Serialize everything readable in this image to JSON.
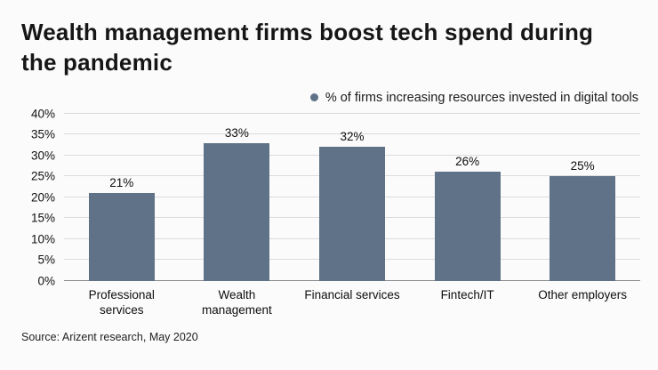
{
  "title": "Wealth management firms boost tech spend during the pandemic",
  "legend": {
    "label": "% of firms increasing resources invested in digital tools"
  },
  "source": "Source: Arizent research, May 2020",
  "colors": {
    "bar": "#5f7287",
    "grid": "#dcdcdc",
    "baseline": "#85888c",
    "text": "#111111",
    "background": "#fbfbfb"
  },
  "chart_data": {
    "type": "bar",
    "title": "Wealth management firms boost tech spend during the pandemic",
    "legend_entries": [
      "% of firms increasing resources invested in digital tools"
    ],
    "legend_position": "top-right",
    "categories": [
      "Professional services",
      "Wealth management",
      "Financial services",
      "Fintech/IT",
      "Other employers"
    ],
    "values": [
      21,
      33,
      32,
      26,
      25
    ],
    "value_labels": [
      "21%",
      "33%",
      "32%",
      "26%",
      "25%"
    ],
    "xlabel": "",
    "ylabel": "",
    "ylim": [
      0,
      40
    ],
    "ytick_step": 5,
    "yticks": [
      "0%",
      "5%",
      "10%",
      "15%",
      "20%",
      "25%",
      "30%",
      "35%",
      "40%"
    ],
    "grid": true,
    "source": "Source: Arizent research, May 2020"
  }
}
